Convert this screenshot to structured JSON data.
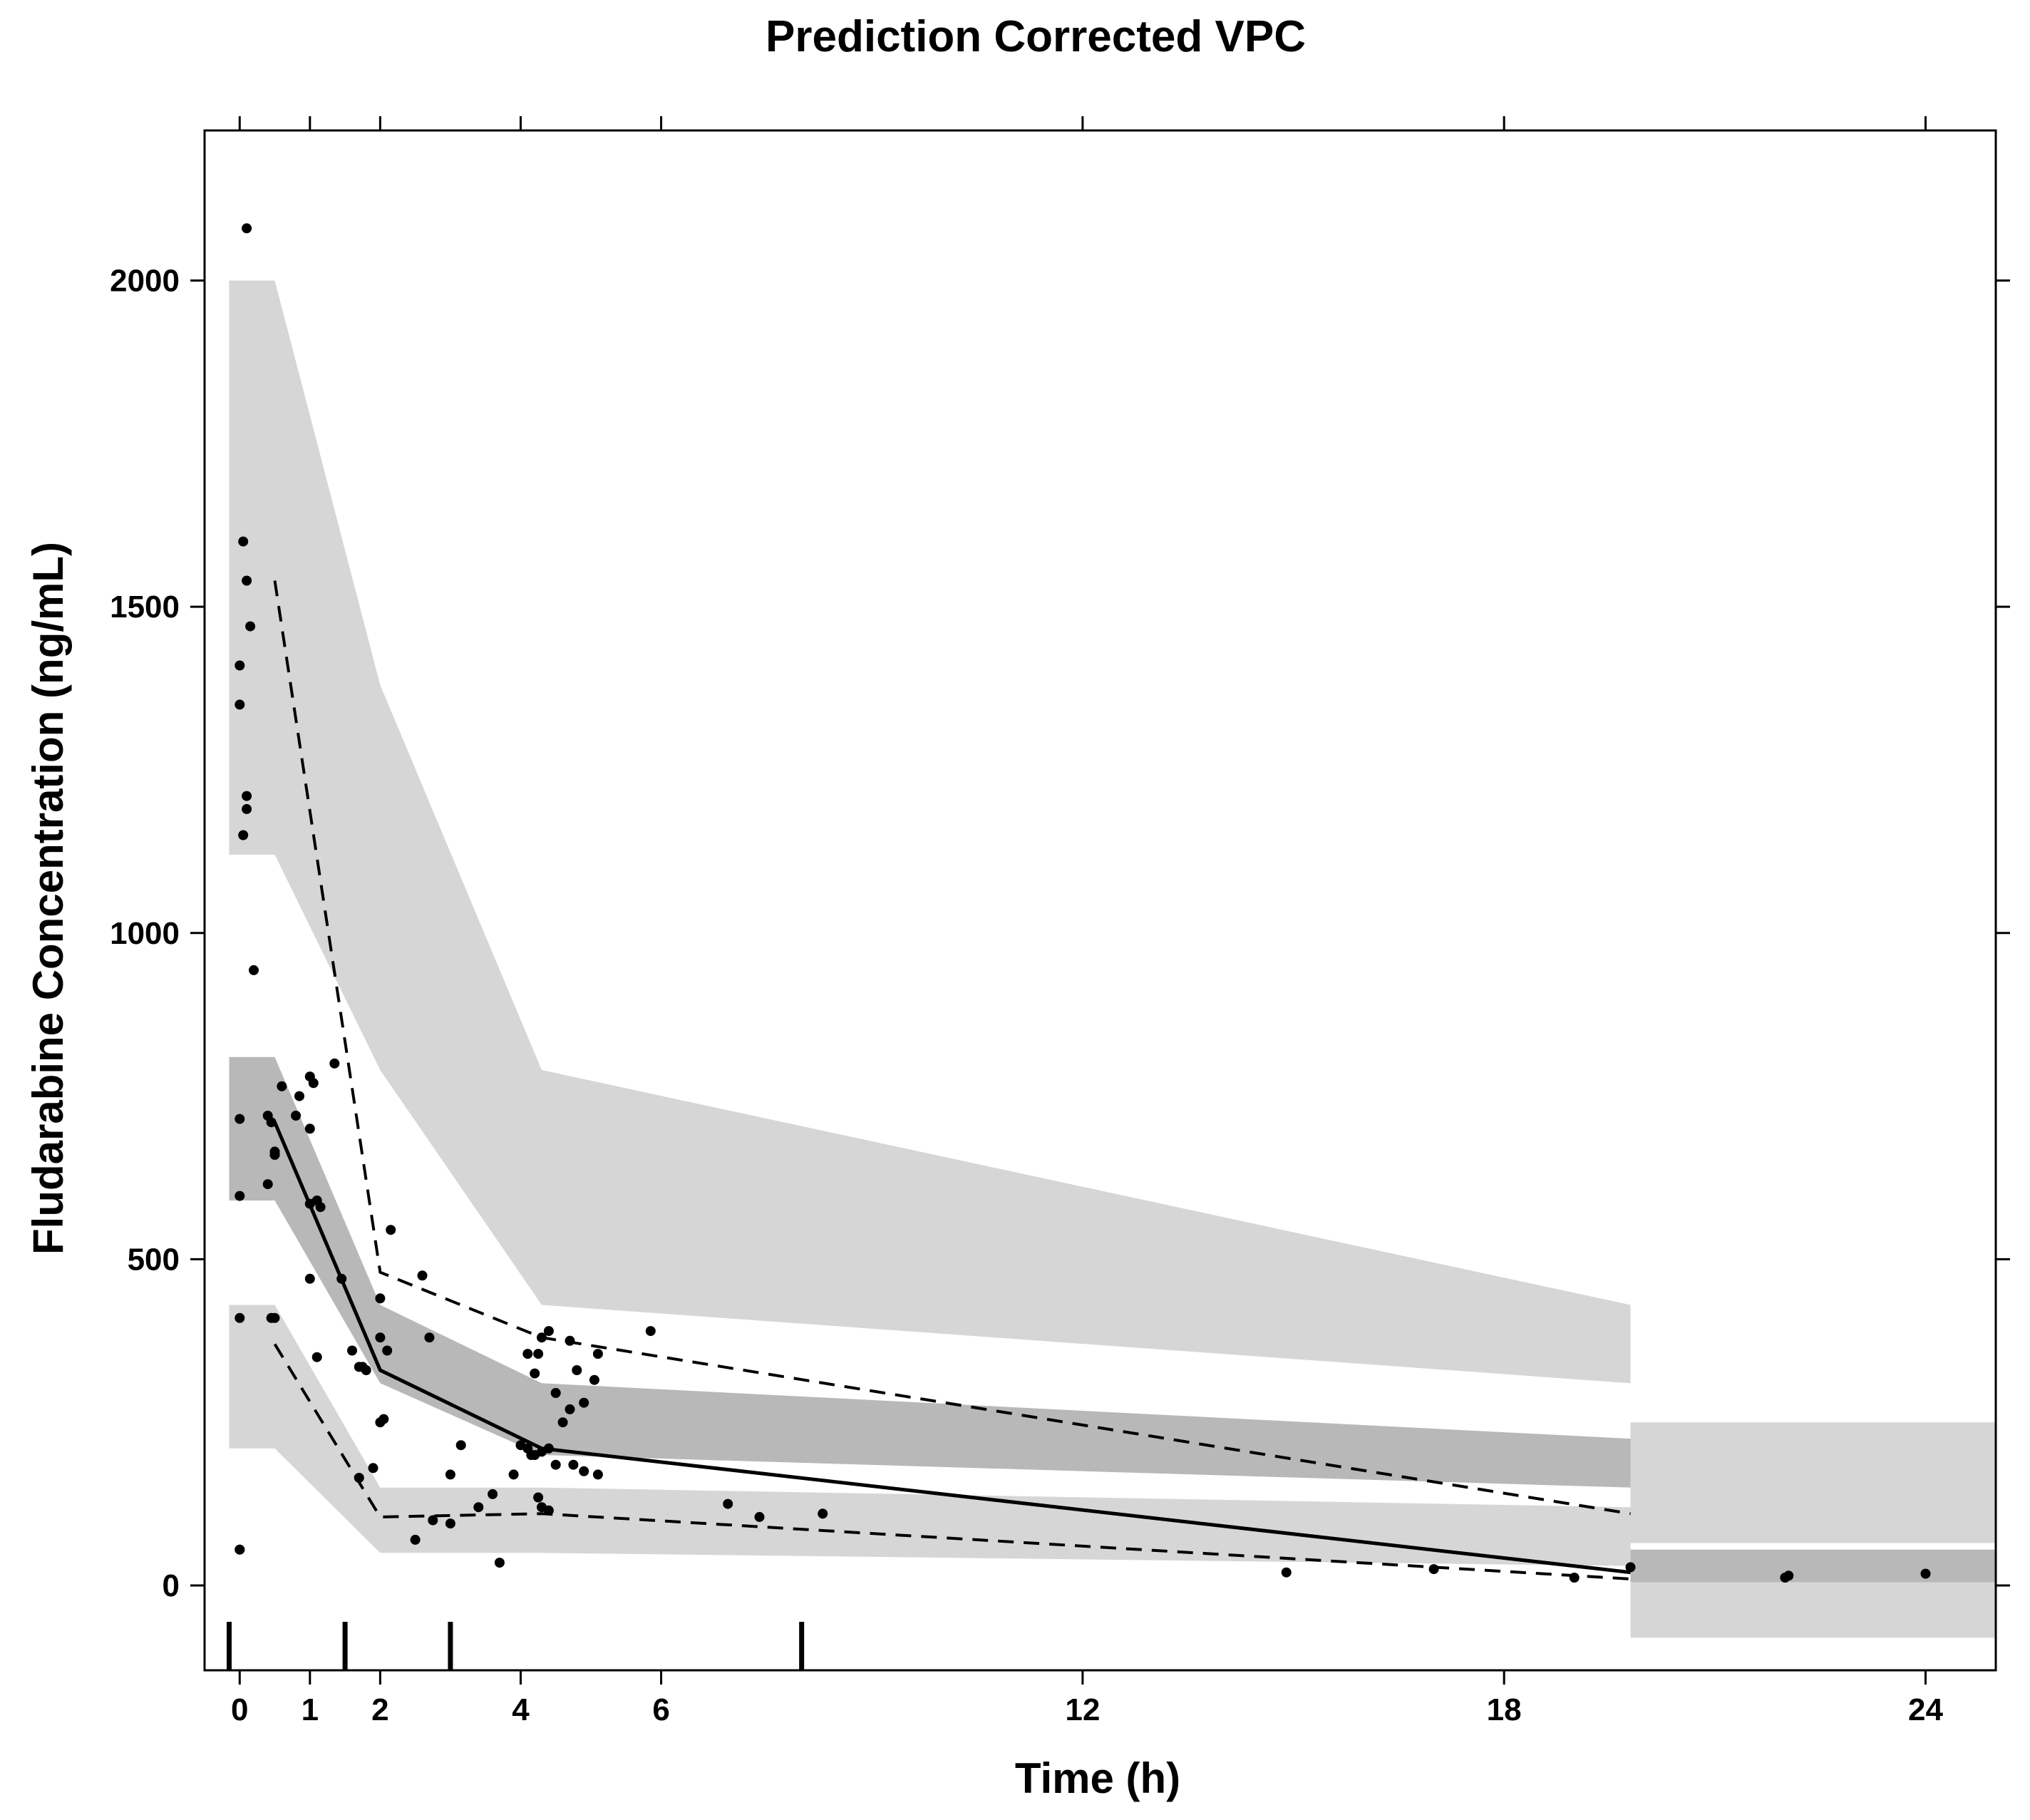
{
  "chart_data": {
    "type": "scatter",
    "title": "Prediction Corrected VPC",
    "xlabel": "Time (h)",
    "ylabel": "Fludarabine Concentration (ng/mL)",
    "xlim": [
      -0.5,
      25.0
    ],
    "ylim": [
      -130,
      2230
    ],
    "x_ticks": [
      0,
      1,
      2,
      4,
      6,
      12,
      18,
      24
    ],
    "y_ticks": [
      0,
      500,
      1000,
      1500,
      2000
    ],
    "colors": {
      "outer_band": "#d6d6d6",
      "median_band": "#b8b8b8",
      "points": "#000000",
      "lines": "#000000"
    },
    "bins": {
      "edges": [
        -0.15,
        0.5,
        2.0,
        4.3,
        19.8,
        25.0
      ],
      "upper_pi": {
        "low": [
          1120,
          790,
          430,
          310,
          65
        ],
        "high": [
          2000,
          1380,
          790,
          430,
          250
        ]
      },
      "median_pi": {
        "low": [
          590,
          310,
          200,
          150,
          5
        ],
        "high": [
          810,
          430,
          310,
          225,
          55
        ]
      },
      "lower_pi": {
        "low": [
          210,
          50,
          50,
          30,
          -80
        ],
        "high": [
          430,
          150,
          150,
          120,
          55
        ]
      }
    },
    "series": [
      {
        "name": "",
        "style": "solid",
        "x": [
          0.5,
          2.0,
          4.3,
          19.8
        ],
        "y": [
          710,
          330,
          210,
          20
        ]
      },
      {
        "name": "",
        "style": "dashed",
        "x": [
          0.5,
          2.0,
          4.3,
          19.8
        ],
        "y": [
          1540,
          480,
          380,
          110
        ]
      },
      {
        "name": "",
        "style": "dashed",
        "x": [
          0.5,
          2.0,
          4.3,
          19.8
        ],
        "y": [
          370,
          105,
          110,
          10
        ]
      }
    ],
    "observations": {
      "x": [
        0.1,
        0.05,
        0.1,
        0.15,
        0.0,
        0.0,
        0.1,
        0.1,
        0.05,
        0.0,
        0.0,
        0.0,
        0.2,
        0.4,
        0.4,
        0.45,
        0.5,
        0.6,
        0.85,
        1.0,
        1.05,
        1.35,
        0.8,
        1.0,
        1.1,
        1.0,
        1.15,
        0.5,
        0.5,
        0.45,
        0.0,
        1.0,
        1.1,
        0.5,
        1.6,
        1.45,
        1.8,
        1.7,
        1.75,
        2.0,
        2.0,
        2.1,
        2.15,
        2.05,
        2.6,
        2.7,
        2.5,
        2.0,
        1.9,
        1.7,
        0.0,
        3.15,
        3.4,
        3.0,
        3.6,
        3.0,
        2.75,
        3.7,
        4.0,
        4.1,
        4.25,
        4.2,
        4.3,
        4.4,
        4.1,
        4.2,
        4.3,
        4.5,
        4.7,
        4.6,
        4.8,
        4.9,
        5.1,
        4.7,
        4.4,
        4.5,
        4.75,
        4.9,
        5.05,
        5.1,
        4.15,
        4.25,
        4.3,
        4.4,
        3.9,
        5.85,
        6.95,
        7.4,
        8.3,
        14.9,
        17.0,
        19.0,
        19.8,
        22.0,
        22.05,
        24.0
      ],
      "y": [
        2080,
        1600,
        1540,
        1470,
        1410,
        1350,
        1210,
        1190,
        1150,
        715,
        597,
        55,
        943,
        615,
        720,
        710,
        660,
        765,
        750,
        780,
        770,
        800,
        720,
        700,
        590,
        585,
        580,
        665,
        660,
        410,
        410,
        470,
        350,
        410,
        360,
        470,
        330,
        335,
        335,
        440,
        380,
        360,
        545,
        255,
        475,
        380,
        70,
        250,
        180,
        165,
        55,
        215,
        120,
        170,
        140,
        95,
        100,
        35,
        215,
        210,
        355,
        325,
        380,
        390,
        355,
        200,
        205,
        295,
        375,
        250,
        330,
        280,
        355,
        270,
        210,
        185,
        185,
        175,
        315,
        170,
        200,
        135,
        120,
        115,
        170,
        390,
        125,
        105,
        110,
        20,
        25,
        12,
        28,
        12,
        15,
        18
      ]
    },
    "rug_x": [
      -0.15,
      1.5,
      3.0,
      8.0
    ],
    "grid": false,
    "legend": "none"
  }
}
